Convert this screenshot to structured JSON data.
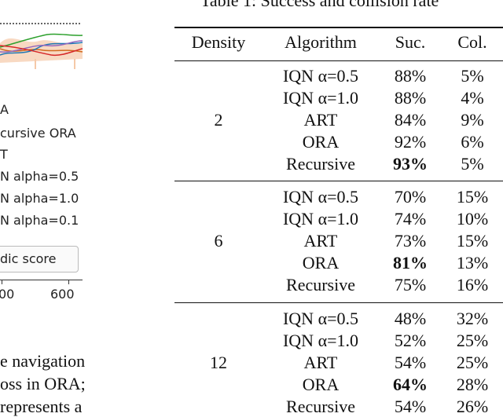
{
  "figure": {
    "legend_items": [
      "A",
      "cursive ORA",
      "T",
      "N alpha=0.5",
      "N alpha=1.0",
      "N alpha=0.1"
    ],
    "score_button_label": "dic score",
    "x_tick_labels": [
      "00",
      "600"
    ]
  },
  "caption_fragments": [
    "e navigation",
    "oss in ORA;",
    "represents a"
  ],
  "table": {
    "title": "Table 1: Success and collision rate",
    "headers": [
      "Density",
      "Algorithm",
      "Suc.",
      "Col."
    ],
    "groups": [
      {
        "density": "2",
        "rows": [
          {
            "algorithm": "IQN α=0.5",
            "suc": "88%",
            "col": "5%",
            "bold_suc": false
          },
          {
            "algorithm": "IQN α=1.0",
            "suc": "88%",
            "col": "4%",
            "bold_suc": false
          },
          {
            "algorithm": "ART",
            "suc": "84%",
            "col": "9%",
            "bold_suc": false
          },
          {
            "algorithm": "ORA",
            "suc": "92%",
            "col": "6%",
            "bold_suc": false
          },
          {
            "algorithm": "Recursive",
            "suc": "93%",
            "col": "5%",
            "bold_suc": true
          }
        ]
      },
      {
        "density": "6",
        "rows": [
          {
            "algorithm": "IQN α=0.5",
            "suc": "70%",
            "col": "15%",
            "bold_suc": false
          },
          {
            "algorithm": "IQN α=1.0",
            "suc": "74%",
            "col": "10%",
            "bold_suc": false
          },
          {
            "algorithm": "ART",
            "suc": "73%",
            "col": "15%",
            "bold_suc": false
          },
          {
            "algorithm": "ORA",
            "suc": "81%",
            "col": "13%",
            "bold_suc": true
          },
          {
            "algorithm": "Recursive",
            "suc": "75%",
            "col": "16%",
            "bold_suc": false
          }
        ]
      },
      {
        "density": "12",
        "rows": [
          {
            "algorithm": "IQN α=0.5",
            "suc": "48%",
            "col": "32%",
            "bold_suc": false
          },
          {
            "algorithm": "IQN α=1.0",
            "suc": "52%",
            "col": "25%",
            "bold_suc": false
          },
          {
            "algorithm": "ART",
            "suc": "54%",
            "col": "25%",
            "bold_suc": false
          },
          {
            "algorithm": "ORA",
            "suc": "64%",
            "col": "28%",
            "bold_suc": true
          },
          {
            "algorithm": "Recursive",
            "suc": "54%",
            "col": "26%",
            "bold_suc": false
          }
        ]
      }
    ]
  }
}
